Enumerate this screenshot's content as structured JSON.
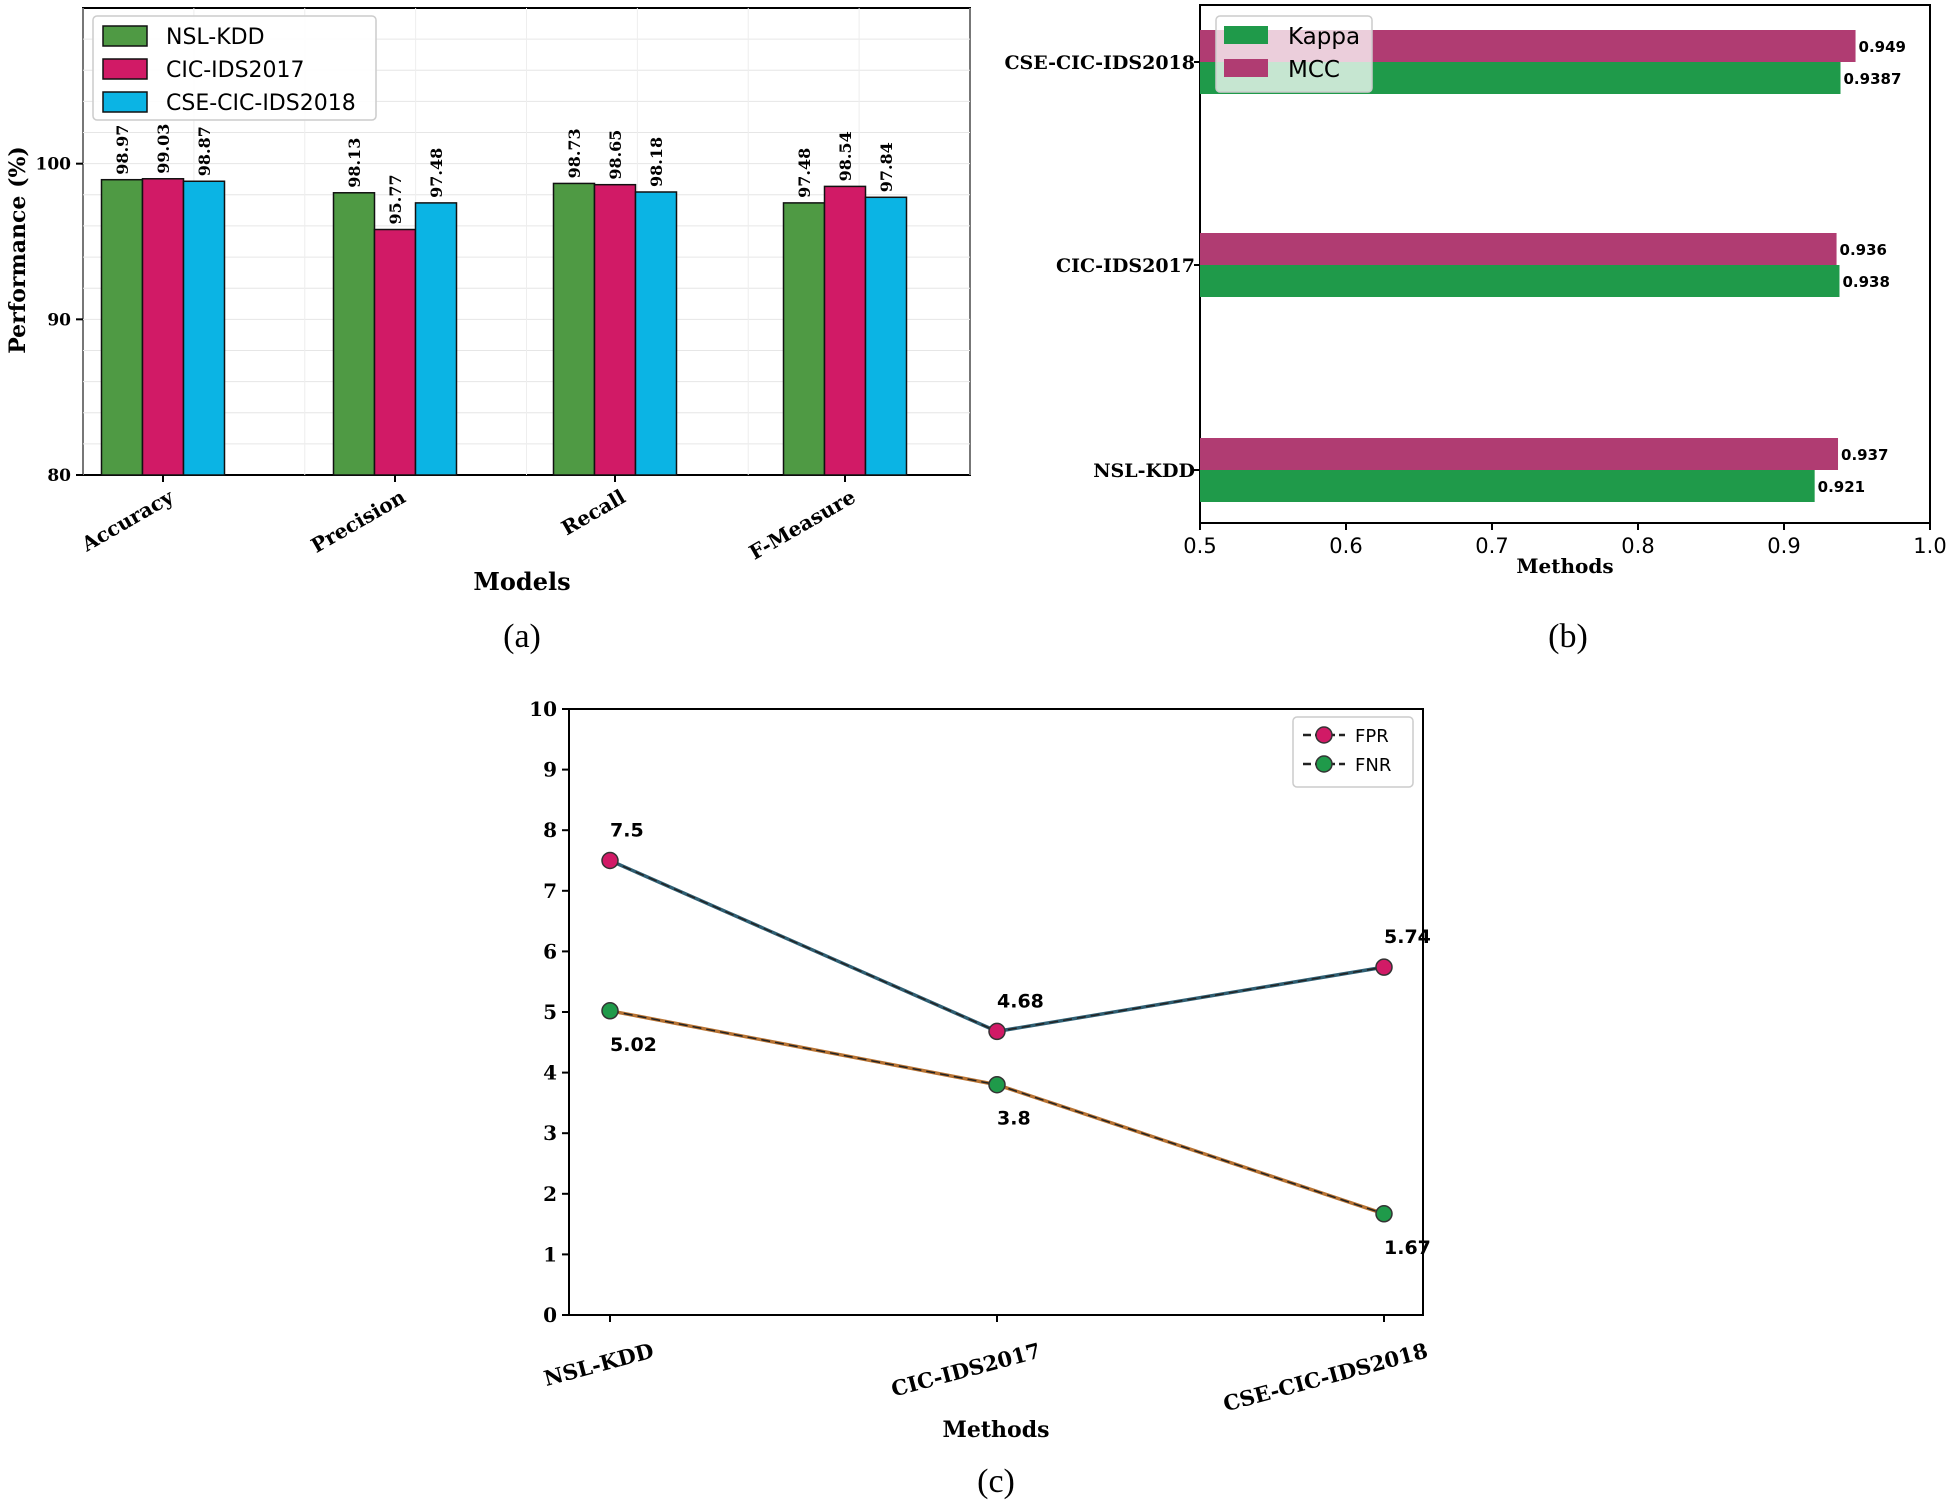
{
  "chart_data": [
    {
      "panel": "(a)",
      "type": "bar",
      "xlabel": "Models",
      "ylabel": "Performance (%)",
      "ylim": [
        80,
        110
      ],
      "yticks": [
        80,
        90,
        100
      ],
      "grid": true,
      "legend_position": "top-left",
      "categories": [
        "Accuracy",
        "Precision",
        "Recall",
        "F-Measure"
      ],
      "series": [
        {
          "name": "NSL-KDD",
          "color": "#4f9a44",
          "values": [
            98.97,
            98.13,
            98.73,
            97.48
          ],
          "labels": [
            "98.97",
            "98.13",
            "98.73",
            "97.48"
          ]
        },
        {
          "name": "CIC-IDS2017",
          "color": "#d11a66",
          "values": [
            99.03,
            95.77,
            98.65,
            98.54
          ],
          "labels": [
            "99.03",
            "95.77",
            "98.65",
            "98.54"
          ]
        },
        {
          "name": "CSE-CIC-IDS2018",
          "color": "#0bb4e4",
          "values": [
            98.87,
            97.48,
            98.18,
            97.84
          ],
          "labels": [
            "98.87",
            "97.48",
            "98.18",
            "97.84"
          ]
        }
      ]
    },
    {
      "panel": "(b)",
      "type": "bar",
      "orientation": "horizontal",
      "xlabel": "Methods",
      "xlim": [
        0.5,
        1.0
      ],
      "xticks": [
        "0.5",
        "0.6",
        "0.7",
        "0.8",
        "0.9",
        "1.0"
      ],
      "grid": false,
      "legend_position": "top-left",
      "categories": [
        "NSL-KDD",
        "CIC-IDS2017",
        "CSE-CIC-IDS2018"
      ],
      "series": [
        {
          "name": "Kappa",
          "color": "#1f9a4a",
          "values": [
            0.921,
            0.938,
            0.9387
          ],
          "labels": [
            "0.921",
            "0.938",
            "0.9387"
          ]
        },
        {
          "name": "MCC",
          "color": "#b03c72",
          "values": [
            0.937,
            0.936,
            0.949
          ],
          "labels": [
            "0.937",
            "0.936",
            "0.949"
          ]
        }
      ]
    },
    {
      "panel": "(c)",
      "type": "line",
      "xlabel": "Methods",
      "ylim": [
        0,
        10
      ],
      "yticks": [
        "0",
        "1",
        "2",
        "3",
        "4",
        "5",
        "6",
        "7",
        "8",
        "9",
        "10"
      ],
      "grid": false,
      "legend_position": "top-right",
      "categories": [
        "NSL-KDD",
        "CIC-IDS2017",
        "CSE-CIC-IDS2018"
      ],
      "series": [
        {
          "name": "FPR",
          "marker_color": "#d11a66",
          "line_color": "#2f5f73",
          "values": [
            7.5,
            4.68,
            5.74
          ],
          "labels": [
            "7.5",
            "4.68",
            "5.74"
          ]
        },
        {
          "name": "FNR",
          "marker_color": "#1f9a4a",
          "line_color": "#b87333",
          "values": [
            5.02,
            3.8,
            1.67
          ],
          "labels": [
            "5.02",
            "3.8",
            "1.67"
          ]
        }
      ]
    }
  ]
}
